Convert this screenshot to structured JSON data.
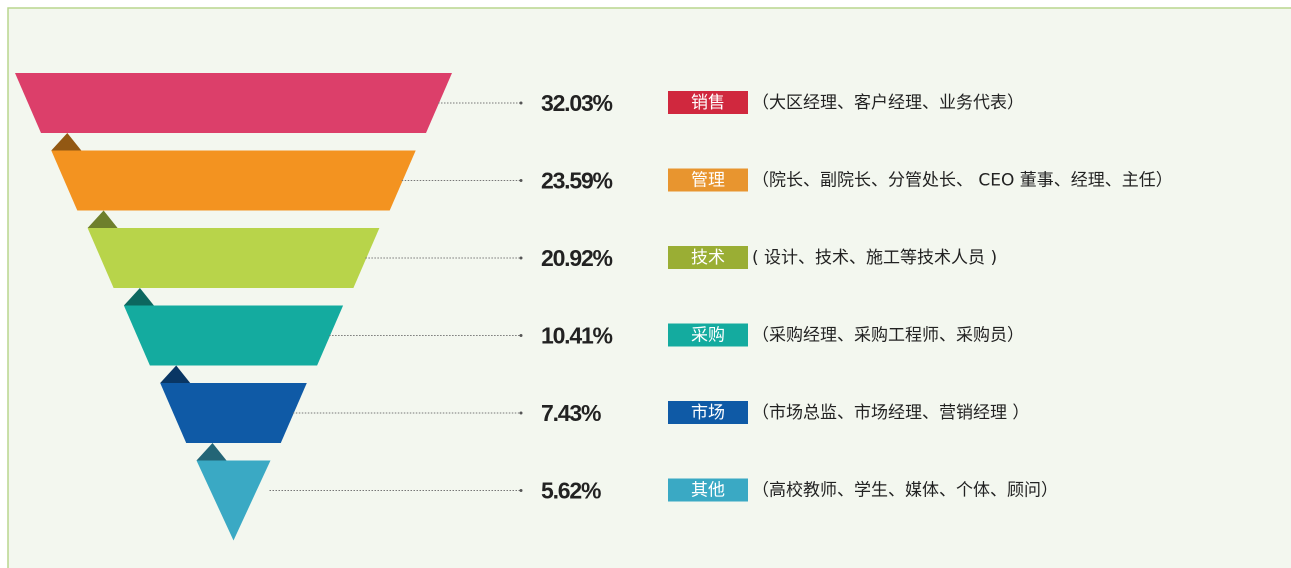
{
  "chart_data": {
    "type": "funnel",
    "categories": [
      "销售",
      "管理",
      "技术",
      "采购",
      "市场",
      "其他"
    ],
    "values": [
      32.03,
      23.59,
      20.92,
      10.41,
      7.43,
      5.62
    ],
    "value_labels": [
      "32.03%",
      "23.59%",
      "20.92%",
      "10.41%",
      "7.43%",
      "5.62%"
    ],
    "descriptions": [
      "（大区经理、客户经理、业务代表）",
      "（院长、副院长、分管处长、 CEO 董事、经理、主任）",
      "( 设计、技术、施工等技术人员 )",
      "（采购经理、采购工程师、采购员）",
      "（市场总监、市场经理、营销经理 ）",
      "（高校教师、学生、媒体、个体、顾问）"
    ],
    "colors": [
      "#dc3f6a",
      "#f39320",
      "#b8d44a",
      "#14ab9f",
      "#0f5aa6",
      "#3aa9c4"
    ],
    "label_colors": [
      "#d0283e",
      "#e8952f",
      "#9aae34",
      "#14ab9f",
      "#0f5aa6",
      "#3aa9c4"
    ]
  }
}
